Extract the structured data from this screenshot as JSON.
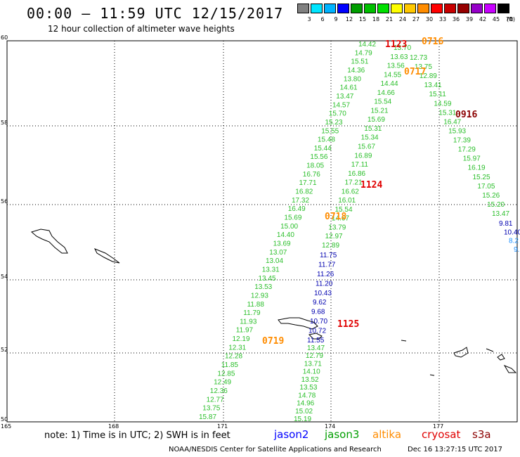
{
  "header": {
    "title": "00:00 – 11:59 UTC 12/15/2017",
    "subtitle": "12 hour collection of altimeter wave heights"
  },
  "colorbar": {
    "colors": [
      "#808080",
      "#00e5ff",
      "#00b3ff",
      "#0000ff",
      "#009e00",
      "#00c000",
      "#00e000",
      "#ffff00",
      "#ffc800",
      "#ff8c00",
      "#ff0000",
      "#c80000",
      "#960000",
      "#9600c8",
      "#c800ff",
      "#000000"
    ],
    "labels": [
      "3",
      "6",
      "9",
      "12",
      "15",
      "18",
      "21",
      "24",
      "27",
      "30",
      "33",
      "36",
      "39",
      "42",
      "45",
      "70",
      "(ft)"
    ]
  },
  "map": {
    "lat_labels": [
      "60",
      "58",
      "56",
      "54",
      "52",
      "50"
    ],
    "lon_labels": [
      "165",
      "168",
      "171",
      "174",
      "177"
    ],
    "times": [
      {
        "text": "1123",
        "color": "#e00000"
      },
      {
        "text": "0716",
        "color": "#ff8c00"
      },
      {
        "text": "0717",
        "color": "#ff8c00"
      },
      {
        "text": "0916",
        "color": "#8b0000"
      },
      {
        "text": "1124",
        "color": "#e00000"
      },
      {
        "text": "0718",
        "color": "#ff8c00"
      },
      {
        "text": "1125",
        "color": "#e00000"
      },
      {
        "text": "0719",
        "color": "#ff8c00"
      }
    ],
    "tracks": {
      "jason3_left": [
        "15.87",
        "13.75",
        "12.77",
        "12.36",
        "12.49",
        "12.85",
        "11.85",
        "12.28",
        "12.31",
        "12.19",
        "11.97",
        "11.93",
        "11.79",
        "11.88",
        "12.93",
        "13.53",
        "13.45",
        "13.31",
        "13.04",
        "13.07",
        "13.69",
        "14.40",
        "15.00",
        "15.69",
        "16.49",
        "17.32",
        "16.82",
        "17.71",
        "16.76",
        "18.05",
        "15.56",
        "15.44",
        "15.48",
        "15.55",
        "15.23",
        "15.70",
        "14.57",
        "13.47",
        "14.61",
        "13.80",
        "14.36",
        "15.51",
        "14.79",
        "14.42"
      ],
      "altika_mid": [
        "13.70",
        "13.63",
        "13.56",
        "14.55",
        "14.44",
        "14.66",
        "15.54",
        "15.21",
        "15.69",
        "15.31",
        "15.34",
        "15.67",
        "16.89",
        "17.11",
        "16.86",
        "17.21",
        "16.62",
        "16.01",
        "15.54",
        "14.67",
        "13.79",
        "12.97",
        "12.89"
      ],
      "jason2_mid": [
        "11.75",
        "11.77",
        "11.26",
        "11.20",
        "10.43",
        "9.62",
        "9.68",
        "10.70",
        "10.72",
        "11.55"
      ],
      "jason3_bottom": [
        "13.47",
        "12.79",
        "13.71",
        "14.10",
        "13.52",
        "13.53",
        "14.78",
        "14.96",
        "15.02",
        "15.19"
      ],
      "s3a_right": [
        "12.73",
        "13.75",
        "12.89",
        "13.41",
        "15.11",
        "14.59",
        "15.31",
        "16.47",
        "15.93",
        "17.39",
        "17.29",
        "15.97",
        "16.19",
        "15.25",
        "17.05",
        "15.26",
        "15.20",
        "13.47"
      ],
      "edge_right": [
        "9.81",
        "10.40",
        "8.2",
        "9."
      ]
    }
  },
  "footer": {
    "note": "note: 1) Time is in UTC; 2) SWH is in feet",
    "legend": [
      {
        "text": "jason2",
        "color": "#0000ff"
      },
      {
        "text": "jason3",
        "color": "#009e00"
      },
      {
        "text": "altika",
        "color": "#ff8c00"
      },
      {
        "text": "cryosat",
        "color": "#e00000"
      },
      {
        "text": "s3a",
        "color": "#8b0000"
      }
    ],
    "credit": "NOAA/NESDIS Center for Satellite Applications and Research",
    "stamp": "Dec 16 13:27:15 UTC 2017"
  }
}
